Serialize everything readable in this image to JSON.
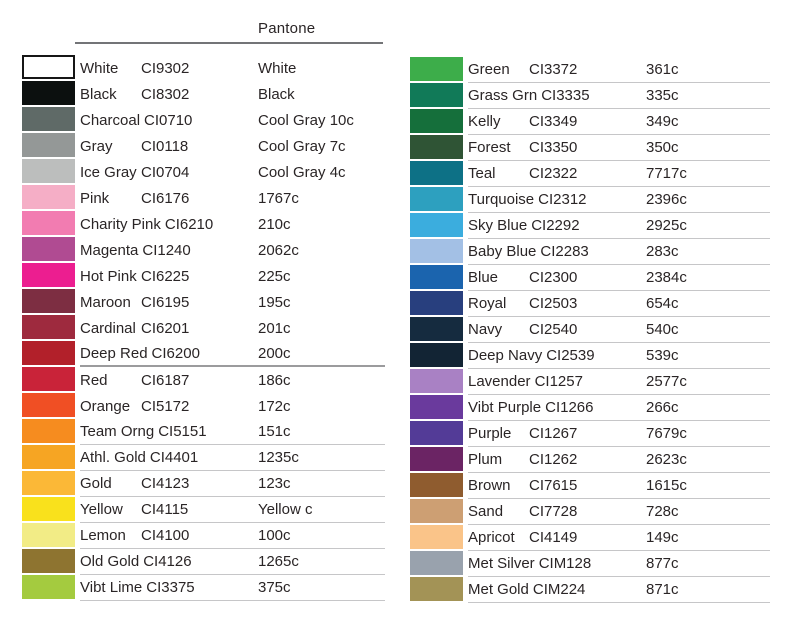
{
  "header": {
    "pantone_label": "Pantone"
  },
  "chart_data": {
    "type": "table",
    "title": "Pantone",
    "description_columns": [
      "swatch",
      "color name + CI code",
      "Pantone value"
    ],
    "columns": [
      {
        "side": "left",
        "rows": [
          {
            "name": "White",
            "code": "CI9302",
            "pantone": "White",
            "swatch": "#ffffff",
            "rule": "none"
          },
          {
            "name": "Black",
            "code": "CI8302",
            "pantone": "Black",
            "swatch": "#0c100f",
            "rule": "none"
          },
          {
            "name": "Charcoal",
            "code": "CI0710",
            "pantone": "Cool Gray 10c",
            "swatch": "#5f6a67",
            "rule": "none"
          },
          {
            "name": "Gray",
            "code": "CI0118",
            "pantone": "Cool Gray 7c",
            "swatch": "#949897",
            "rule": "none"
          },
          {
            "name": "Ice Gray",
            "code": "CI0704",
            "pantone": "Cool Gray 4c",
            "swatch": "#bcbebd",
            "rule": "none"
          },
          {
            "name": "Pink",
            "code": "CI6176",
            "pantone": "1767c",
            "swatch": "#f5aec6",
            "rule": "none"
          },
          {
            "name": "Charity Pink",
            "code": "CI6210",
            "pantone": "210c",
            "swatch": "#f27cb1",
            "rule": "none"
          },
          {
            "name": "Magenta",
            "code": "CI1240",
            "pantone": "2062c",
            "swatch": "#b04b92",
            "rule": "none"
          },
          {
            "name": "Hot Pink",
            "code": "CI6225",
            "pantone": "225c",
            "swatch": "#ec1e90",
            "rule": "none"
          },
          {
            "name": "Maroon",
            "code": "CI6195",
            "pantone": "195c",
            "swatch": "#7d2e42",
            "rule": "none"
          },
          {
            "name": "Cardinal",
            "code": "CI6201",
            "pantone": "201c",
            "swatch": "#9e2a3e",
            "rule": "none"
          },
          {
            "name": "Deep Red",
            "code": "CI6200",
            "pantone": "200c",
            "swatch": "#b2202a",
            "rule": "dark"
          },
          {
            "name": "Red",
            "code": "CI6187",
            "pantone": "186c",
            "swatch": "#c92339",
            "rule": "none"
          },
          {
            "name": "Orange",
            "code": "CI5172",
            "pantone": "172c",
            "swatch": "#f04f24",
            "rule": "none"
          },
          {
            "name": "Team Orng",
            "code": "CI5151",
            "pantone": "151c",
            "swatch": "#f68c1f",
            "rule": "light"
          },
          {
            "name": "Athl. Gold",
            "code": "CI4401",
            "pantone": "1235c",
            "swatch": "#f6a523",
            "rule": "light"
          },
          {
            "name": "Gold",
            "code": "CI4123",
            "pantone": "123c",
            "swatch": "#fbb837",
            "rule": "light"
          },
          {
            "name": "Yellow",
            "code": "CI4115",
            "pantone": "Yellow c",
            "swatch": "#f9e11c",
            "rule": "light"
          },
          {
            "name": "Lemon",
            "code": "CI4100",
            "pantone": "100c",
            "swatch": "#f2ec86",
            "rule": "light"
          },
          {
            "name": "Old Gold",
            "code": "CI4126",
            "pantone": "1265c",
            "swatch": "#8e7430",
            "rule": "light"
          },
          {
            "name": "Vibt Lime",
            "code": "CI3375",
            "pantone": "375c",
            "swatch": "#a4cb3f",
            "rule": "light"
          }
        ]
      },
      {
        "side": "right",
        "rows": [
          {
            "name": "Green",
            "code": "CI3372",
            "pantone": "361c",
            "swatch": "#3dad4a",
            "rule": "light"
          },
          {
            "name": "Grass Grn",
            "code": "CI3335",
            "pantone": "335c",
            "swatch": "#117a58",
            "rule": "light"
          },
          {
            "name": "Kelly",
            "code": "CI3349",
            "pantone": "349c",
            "swatch": "#156f3b",
            "rule": "light"
          },
          {
            "name": "Forest",
            "code": "CI3350",
            "pantone": "350c",
            "swatch": "#2f5435",
            "rule": "light"
          },
          {
            "name": "Teal",
            "code": "CI2322",
            "pantone": "7717c",
            "swatch": "#0d7186",
            "rule": "light"
          },
          {
            "name": "Turquoise",
            "code": "CI2312",
            "pantone": "2396c",
            "swatch": "#2da0bf",
            "rule": "light"
          },
          {
            "name": "Sky Blue",
            "code": "CI2292",
            "pantone": "2925c",
            "swatch": "#3badde",
            "rule": "light"
          },
          {
            "name": "Baby Blue",
            "code": "CI2283",
            "pantone": "283c",
            "swatch": "#a3c0e5",
            "rule": "light"
          },
          {
            "name": "Blue",
            "code": "CI2300",
            "pantone": "2384c",
            "swatch": "#1b64ae",
            "rule": "light"
          },
          {
            "name": "Royal",
            "code": "CI2503",
            "pantone": "654c",
            "swatch": "#283f7e",
            "rule": "light"
          },
          {
            "name": "Navy",
            "code": "CI2540",
            "pantone": "540c",
            "swatch": "#152b3f",
            "rule": "light"
          },
          {
            "name": "Deep Navy",
            "code": "CI2539",
            "pantone": "539c",
            "swatch": "#122434",
            "rule": "light"
          },
          {
            "name": "Lavender",
            "code": "CI1257",
            "pantone": "2577c",
            "swatch": "#a981c4",
            "rule": "light"
          },
          {
            "name": "Vibt Purple",
            "code": "CI1266",
            "pantone": "266c",
            "swatch": "#6a3a9d",
            "rule": "light"
          },
          {
            "name": "Purple",
            "code": "CI1267",
            "pantone": "7679c",
            "swatch": "#533b97",
            "rule": "light"
          },
          {
            "name": "Plum",
            "code": "CI1262",
            "pantone": "2623c",
            "swatch": "#6b2464",
            "rule": "light"
          },
          {
            "name": "Brown",
            "code": "CI7615",
            "pantone": "1615c",
            "swatch": "#8f5c2f",
            "rule": "light"
          },
          {
            "name": "Sand",
            "code": "CI7728",
            "pantone": "728c",
            "swatch": "#cd9f73",
            "rule": "light"
          },
          {
            "name": "Apricot",
            "code": "CI4149",
            "pantone": "149c",
            "swatch": "#fac489",
            "rule": "light"
          },
          {
            "name": "Met Silver",
            "code": "CIM128",
            "pantone": "877c",
            "swatch": "#99a2ad",
            "rule": "light"
          },
          {
            "name": "Met Gold",
            "code": "CIM224",
            "pantone": "871c",
            "swatch": "#a39356",
            "rule": "light"
          }
        ]
      }
    ]
  }
}
